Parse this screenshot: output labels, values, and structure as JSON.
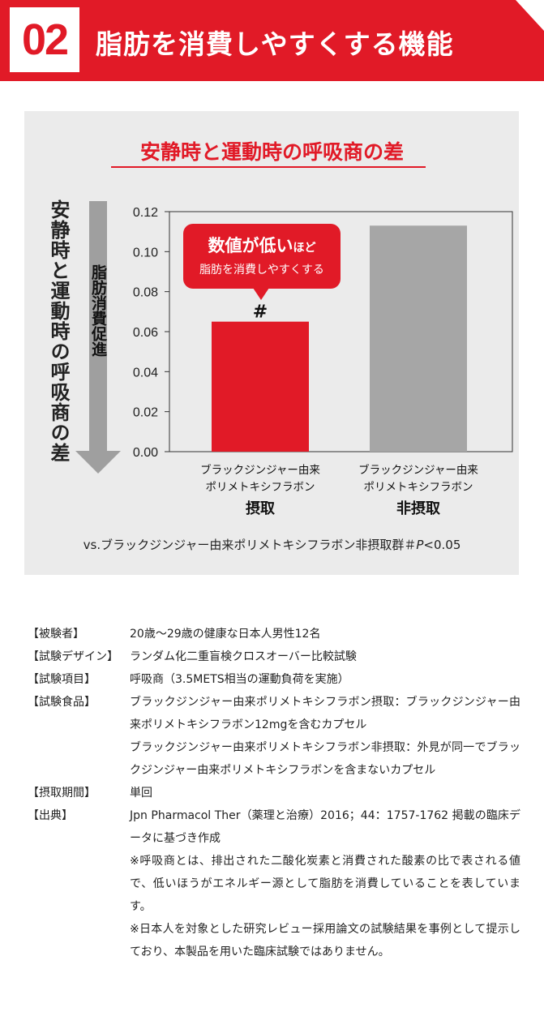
{
  "header": {
    "number": "02",
    "title": "脂肪を消費しやすくする機能",
    "colors": {
      "accent": "#e11a27",
      "bar_gray": "#a6a6a6",
      "panel": "#ebebeb"
    }
  },
  "chart_data": {
    "type": "bar",
    "title": "安静時と運動時の呼吸商の差",
    "ylabel": "安静時と運動時の呼吸商の差",
    "arrow_label": "脂肪消費促進",
    "ylim": [
      0,
      0.12
    ],
    "yticks": [
      "0.00",
      "0.02",
      "0.04",
      "0.06",
      "0.08",
      "0.10",
      "0.12"
    ],
    "categories": [
      {
        "line1": "ブラックジンジャー由来",
        "line2": "ポリメトキシフラボン",
        "line3": "摂取"
      },
      {
        "line1": "ブラックジンジャー由来",
        "line2": "ポリメトキシフラボン",
        "line3": "非摂取"
      }
    ],
    "values": [
      0.065,
      0.113
    ],
    "bar_colors": [
      "#e11a27",
      "#a6a6a6"
    ],
    "significance_mark": "#",
    "callout": {
      "bold": "数値が低い",
      "suffix": "ほど",
      "line2": "脂肪を消費しやすくする"
    },
    "footnote_prefix": "vs.ブラックジンジャー由来ポリメトキシフラボン非摂取群＃",
    "footnote_p": "P",
    "footnote_suffix": "<0.05"
  },
  "details": [
    {
      "label": "【被験者】",
      "lines": [
        "20歳〜29歳の健康な日本人男性12名"
      ]
    },
    {
      "label": "【試験デザイン】",
      "lines": [
        "ランダム化二重盲検クロスオーバー比較試験"
      ]
    },
    {
      "label": "【試験項目】",
      "lines": [
        "呼吸商（3.5METS相当の運動負荷を実施）"
      ]
    },
    {
      "label": "【試験食品】",
      "lines": [
        "ブラックジンジャー由来ポリメトキシフラボン摂取：ブラックジンジャー由来ポリメトキシフラボン12mgを含むカプセル",
        "ブラックジンジャー由来ポリメトキシフラボン非摂取：外見が同一でブラックジンジャー由来ポリメトキシフラボンを含まないカプセル"
      ]
    },
    {
      "label": "【摂取期間】",
      "lines": [
        "単回"
      ]
    },
    {
      "label": "【出典】",
      "lines": [
        "Jpn Pharmacol Ther（薬理と治療）2016；44：1757-1762 掲載の臨床データに基づき作成",
        "※呼吸商とは、排出された二酸化炭素と消費された酸素の比で表される値で、低いほうがエネルギー源として脂肪を消費していることを表しています。",
        "※日本人を対象とした研究レビュー採用論文の試験結果を事例として提示しており、本製品を用いた臨床試験ではありません。"
      ]
    }
  ]
}
